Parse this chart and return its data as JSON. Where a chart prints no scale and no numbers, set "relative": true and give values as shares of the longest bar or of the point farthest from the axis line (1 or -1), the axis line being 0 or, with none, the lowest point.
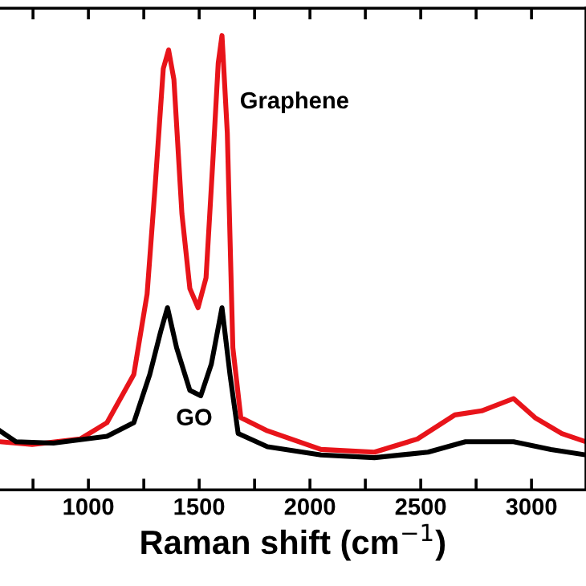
{
  "chart_data": {
    "type": "line",
    "xlabel": "Raman shift (cm$^{−1}$)",
    "relative": true,
    "xlim": [
      601,
      3246
    ],
    "xticks": [
      {
        "value": 750,
        "label": null
      },
      1000,
      {
        "value": 1250,
        "label": null
      },
      1500,
      {
        "value": 1750,
        "label": null
      },
      2000,
      {
        "value": 2250,
        "label": null
      },
      2500,
      {
        "value": 2750,
        "label": null
      },
      3000
    ],
    "series": [
      {
        "name": "Graphene",
        "color": "#e8141a",
        "x": [
          601,
          746,
          963,
          1084,
          1205,
          1265,
          1301,
          1338,
          1362,
          1386,
          1422,
          1458,
          1495,
          1531,
          1562,
          1586,
          1603,
          1627,
          1652,
          1688,
          1808,
          2050,
          2291,
          2485,
          2654,
          2775,
          2919,
          3016,
          3137,
          3245
        ],
        "values": [
          0.106,
          0.1,
          0.112,
          0.148,
          0.254,
          0.431,
          0.667,
          0.927,
          0.968,
          0.903,
          0.608,
          0.443,
          0.401,
          0.467,
          0.726,
          0.939,
          1.0,
          0.785,
          0.313,
          0.159,
          0.13,
          0.089,
          0.083,
          0.112,
          0.165,
          0.174,
          0.201,
          0.159,
          0.124,
          0.106
        ]
      },
      {
        "name": "GO",
        "color": "#000000",
        "x": [
          601,
          673,
          842,
          1084,
          1205,
          1277,
          1326,
          1357,
          1398,
          1458,
          1507,
          1555,
          1603,
          1639,
          1676,
          1808,
          2050,
          2291,
          2533,
          2702,
          2919,
          3088,
          3245
        ],
        "values": [
          0.13,
          0.106,
          0.103,
          0.118,
          0.148,
          0.254,
          0.348,
          0.401,
          0.313,
          0.219,
          0.207,
          0.277,
          0.401,
          0.254,
          0.124,
          0.095,
          0.077,
          0.071,
          0.083,
          0.106,
          0.106,
          0.089,
          0.077
        ]
      }
    ]
  }
}
